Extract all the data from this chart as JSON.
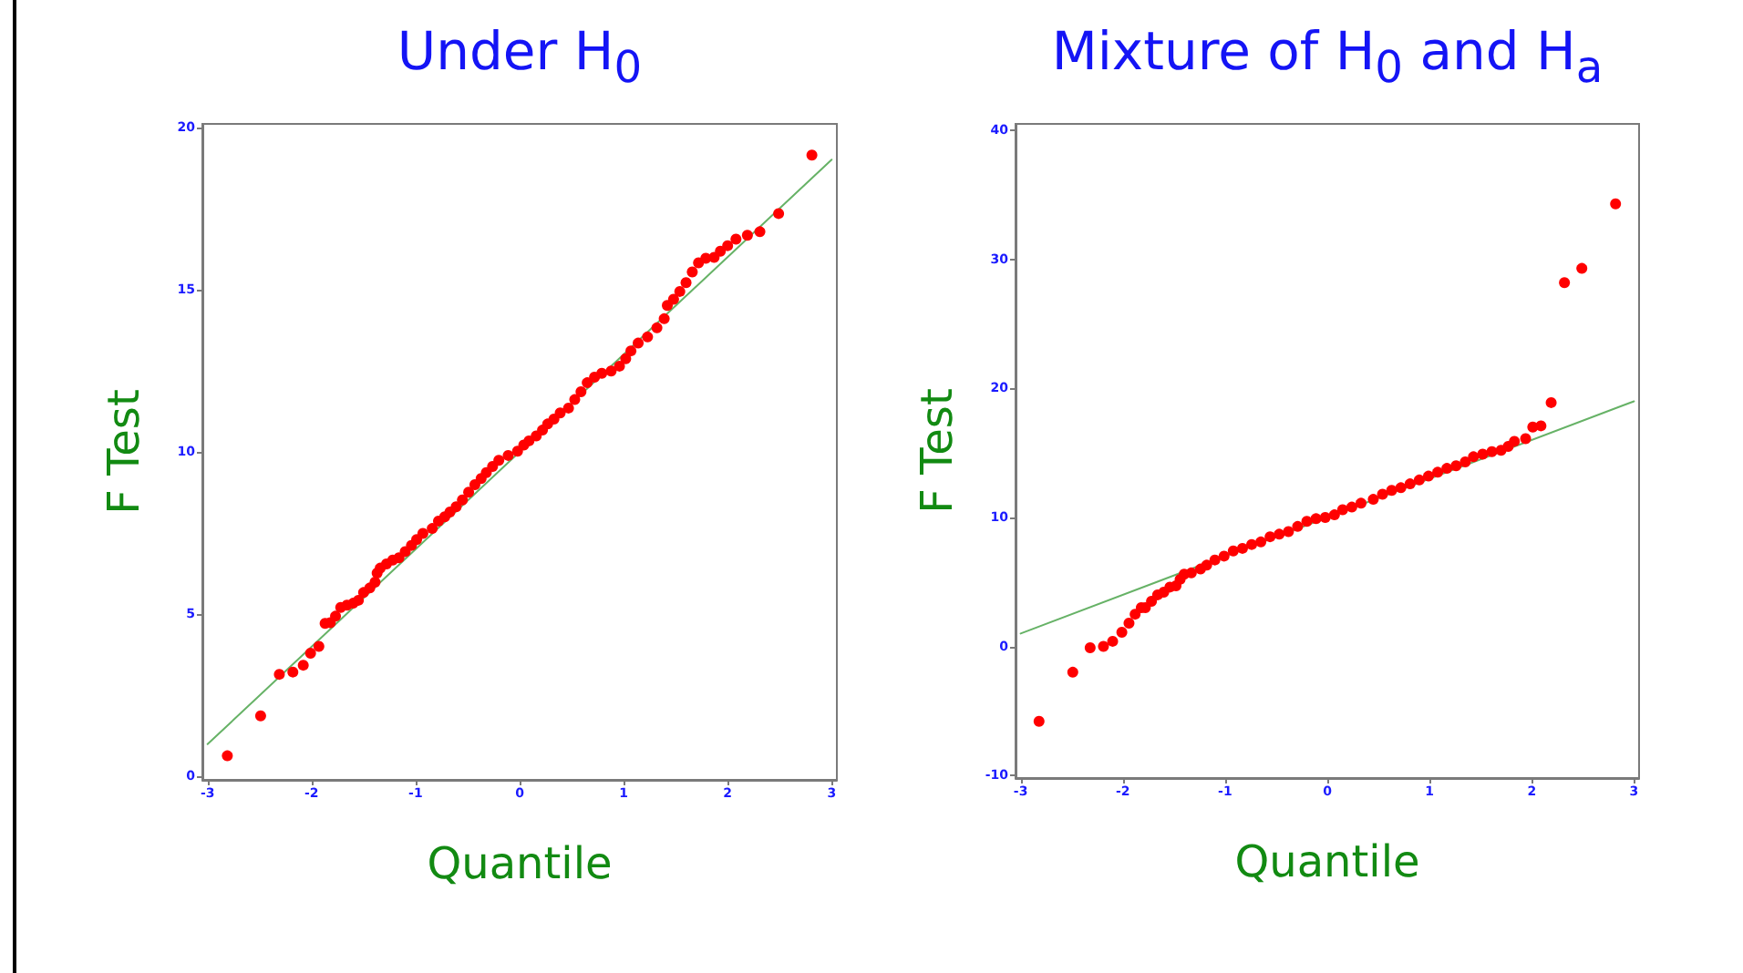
{
  "chart_data": [
    {
      "type": "scatter",
      "title": "Under H$_{0}$",
      "xlabel": "Quantile",
      "ylabel": "F Test",
      "xlim": [
        -3.05,
        3.05
      ],
      "ylim": [
        -0.1,
        20.1
      ],
      "xticks": [
        -3,
        -2,
        -1,
        0,
        1,
        2,
        3
      ],
      "yticks": [
        0,
        5,
        10,
        15,
        20
      ],
      "marker": "circle",
      "series": [
        {
          "color": "#ff0000",
          "x": [
            -2.81,
            -2.49,
            -2.31,
            -2.18,
            -2.08,
            -2.01,
            -1.93,
            -1.87,
            -1.82,
            -1.77,
            -1.72,
            -1.66,
            -1.6,
            -1.55,
            -1.5,
            -1.44,
            -1.39,
            -1.37,
            -1.34,
            -1.28,
            -1.22,
            -1.16,
            -1.1,
            -1.04,
            -0.99,
            -0.93,
            -0.84,
            -0.78,
            -0.72,
            -0.67,
            -0.61,
            -0.55,
            -0.49,
            -0.43,
            -0.37,
            -0.32,
            -0.26,
            -0.2,
            -0.11,
            -0.02,
            0.04,
            0.09,
            0.16,
            0.22,
            0.27,
            0.33,
            0.39,
            0.47,
            0.53,
            0.59,
            0.65,
            0.72,
            0.79,
            0.88,
            0.96,
            1.02,
            1.07,
            1.14,
            1.23,
            1.32,
            1.39,
            1.42,
            1.48,
            1.54,
            1.6,
            1.66,
            1.72,
            1.79,
            1.87,
            1.93,
            2.0,
            2.08,
            2.19,
            2.31,
            2.49,
            2.81
          ],
          "values": [
            0.64,
            1.87,
            3.15,
            3.22,
            3.43,
            3.8,
            4.01,
            4.72,
            4.74,
            4.94,
            5.21,
            5.28,
            5.34,
            5.43,
            5.67,
            5.81,
            5.99,
            6.27,
            6.42,
            6.55,
            6.67,
            6.74,
            6.93,
            7.12,
            7.3,
            7.49,
            7.64,
            7.87,
            8.0,
            8.15,
            8.31,
            8.52,
            8.76,
            8.99,
            9.18,
            9.36,
            9.55,
            9.74,
            9.89,
            10.02,
            10.21,
            10.34,
            10.49,
            10.67,
            10.86,
            11.01,
            11.2,
            11.35,
            11.61,
            11.85,
            12.13,
            12.3,
            12.42,
            12.49,
            12.64,
            12.87,
            13.11,
            13.35,
            13.54,
            13.82,
            14.1,
            14.51,
            14.7,
            14.94,
            15.21,
            15.54,
            15.82,
            15.96,
            15.99,
            16.18,
            16.35,
            16.55,
            16.67,
            16.78,
            17.34,
            19.14
          ]
        },
        {
          "type": "line",
          "color": "#66b266",
          "marker": "none",
          "x": [
            -3,
            3
          ],
          "values": [
            1,
            19
          ]
        }
      ]
    },
    {
      "type": "scatter",
      "title": "Mixture of H$_{0}$ and H$_{a}$",
      "xlabel": "Quantile",
      "ylabel": "F Test",
      "xlim": [
        -3.05,
        3.05
      ],
      "ylim": [
        -10.2,
        40.5
      ],
      "xticks": [
        -3,
        -2,
        -1,
        0,
        1,
        2,
        3
      ],
      "yticks": [
        -10,
        0,
        10,
        20,
        30,
        40
      ],
      "marker": "circle",
      "series": [
        {
          "color": "#ff0000",
          "x": [
            -2.82,
            -2.49,
            -2.32,
            -2.19,
            -2.1,
            -2.01,
            -1.94,
            -1.88,
            -1.82,
            -1.78,
            -1.72,
            -1.66,
            -1.6,
            -1.54,
            -1.48,
            -1.44,
            -1.4,
            -1.33,
            -1.24,
            -1.18,
            -1.1,
            -1.01,
            -0.92,
            -0.83,
            -0.74,
            -0.65,
            -0.56,
            -0.47,
            -0.38,
            -0.29,
            -0.2,
            -0.11,
            -0.02,
            0.07,
            0.15,
            0.24,
            0.33,
            0.45,
            0.54,
            0.63,
            0.72,
            0.81,
            0.9,
            0.99,
            1.08,
            1.17,
            1.26,
            1.35,
            1.43,
            1.52,
            1.61,
            1.7,
            1.77,
            1.83,
            1.94,
            2.01,
            2.09,
            2.19,
            2.32,
            2.49,
            2.82
          ],
          "values": [
            -5.8,
            -2.0,
            -0.1,
            0.0,
            0.4,
            1.1,
            1.8,
            2.5,
            3.0,
            3.0,
            3.5,
            4.0,
            4.2,
            4.6,
            4.7,
            5.2,
            5.6,
            5.7,
            6.0,
            6.3,
            6.7,
            7.0,
            7.4,
            7.6,
            7.9,
            8.1,
            8.5,
            8.7,
            8.9,
            9.3,
            9.7,
            9.9,
            10.0,
            10.2,
            10.6,
            10.8,
            11.1,
            11.4,
            11.8,
            12.1,
            12.3,
            12.6,
            12.9,
            13.2,
            13.5,
            13.8,
            14.0,
            14.3,
            14.7,
            14.9,
            15.1,
            15.2,
            15.5,
            15.9,
            16.1,
            17.0,
            17.1,
            18.9,
            28.2,
            29.3,
            34.3
          ]
        },
        {
          "type": "line",
          "color": "#66b266",
          "marker": "none",
          "x": [
            -3,
            3
          ],
          "values": [
            1,
            19
          ]
        }
      ]
    }
  ]
}
